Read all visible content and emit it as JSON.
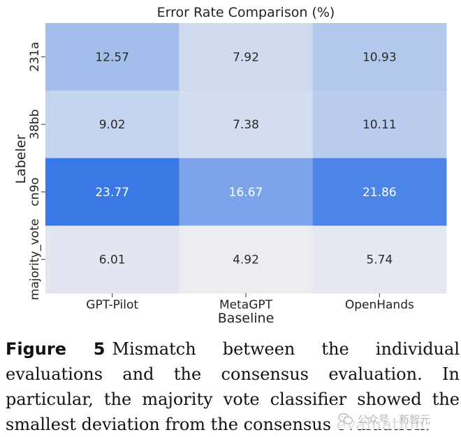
{
  "chart_data": {
    "type": "heatmap",
    "title": "Error Rate Comparison (%)",
    "xlabel": "Baseline",
    "ylabel": "Labeler",
    "columns": [
      "GPT-Pilot",
      "MetaGPT",
      "OpenHands"
    ],
    "rows": [
      "231a",
      "38bb",
      "cn9o",
      "majority_vote"
    ],
    "values": [
      [
        12.57,
        7.92,
        10.93
      ],
      [
        9.02,
        7.38,
        10.11
      ],
      [
        23.77,
        16.67,
        21.86
      ],
      [
        6.01,
        4.92,
        5.74
      ]
    ],
    "cell_labels": [
      [
        "12.57",
        "7.92",
        "10.93"
      ],
      [
        "9.02",
        "7.38",
        "10.11"
      ],
      [
        "23.77",
        "16.67",
        "21.86"
      ],
      [
        "6.01",
        "4.92",
        "5.74"
      ]
    ],
    "colormap": {
      "low": "#ebedf1",
      "high": "#3a78e6"
    },
    "value_range": [
      4.92,
      23.77
    ]
  },
  "caption": {
    "label": "Figure 5",
    "text": "Mismatch between the individual evaluations and the consensus evaluation. In particular, the majority vote classifier showed the smallest deviation from the consensus evaluation."
  },
  "watermark": {
    "text": "公众号 · 新智元"
  }
}
